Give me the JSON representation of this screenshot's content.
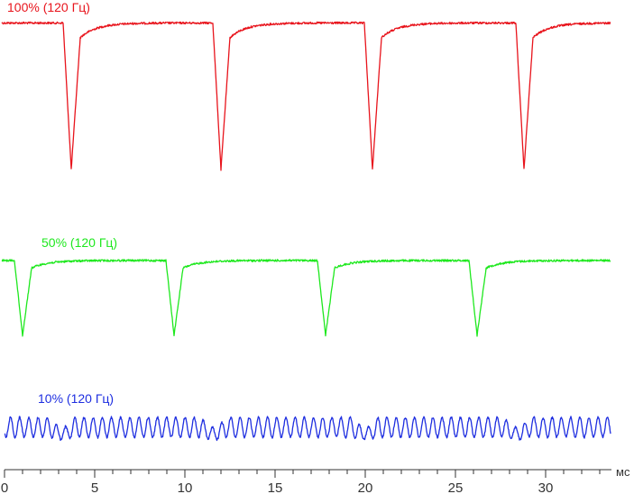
{
  "chart_data": {
    "type": "line",
    "title": "",
    "xlabel": "мс",
    "ylabel": "",
    "xlim": [
      0,
      33.3
    ],
    "x_ticks": [
      "0",
      "5",
      "10",
      "15",
      "20",
      "25",
      "30"
    ],
    "grid": false,
    "legend": "inline labels above each trace",
    "series": [
      {
        "name": "100% (120 Гц)",
        "color": "#e8141c",
        "period_ms": 8.33,
        "description_shape": "flat high level with sharp downward dips",
        "dip_centers_ms": [
          3.7,
          12.0,
          20.4,
          28.8
        ],
        "baseline_level": 1.0,
        "dip_level": 0.0
      },
      {
        "name": "50% (120 Гц)",
        "color": "#1ee81e",
        "period_ms": 8.33,
        "description_shape": "flat high level with sharp downward dips",
        "dip_centers_ms": [
          1.0,
          9.4,
          17.8,
          26.2
        ],
        "baseline_level": 1.0,
        "dip_level": 0.0
      },
      {
        "name": "10% (120 Гц)",
        "color": "#1e2ee0",
        "period_ms": 8.33,
        "description_shape": "continuous oscillation with small disturbances",
        "oscillation_cycles": 66,
        "disturbance_centers_ms": [
          3.2,
          11.6,
          20.0,
          28.4
        ]
      }
    ]
  }
}
